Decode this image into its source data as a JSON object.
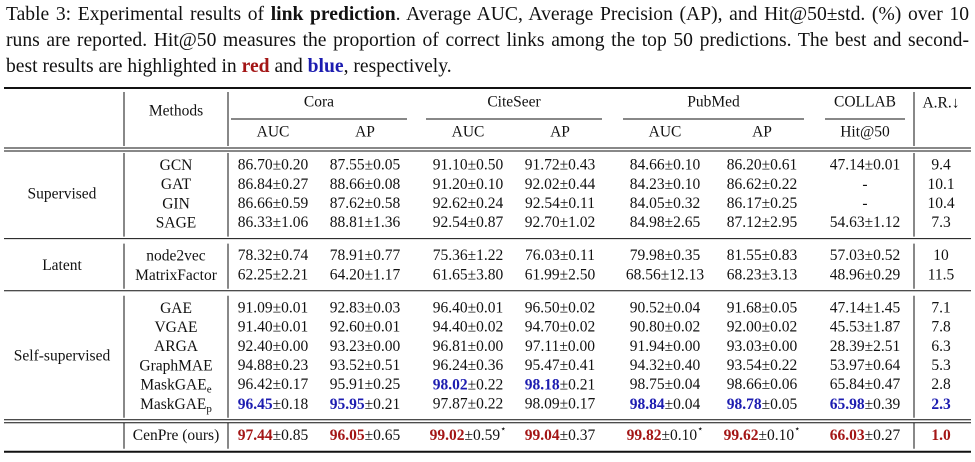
{
  "caption": [
    {
      "text": "Table 3:  Experimental results of "
    },
    {
      "text": "link prediction",
      "bold": true
    },
    {
      "text": ".  Average AUC, Average Precision (AP), and Hit@50±std. (%) over 10 runs are reported. Hit@50 measures the proportion of correct links among the top 50 predictions. The best and second-best results are highlighted in "
    },
    {
      "text": "red",
      "bold": true,
      "color": "#a31515"
    },
    {
      "text": " and "
    },
    {
      "text": "blue",
      "bold": true,
      "color": "#1c1cb0"
    },
    {
      "text": ", respectively."
    }
  ],
  "table": {
    "highlight_colors": {
      "best": "#a31515",
      "second": "#1c1cb0"
    },
    "methods_header": "Methods",
    "rank_header": "A.R.↓",
    "datasets": [
      {
        "name": "Cora",
        "metrics": [
          "AUC",
          "AP"
        ]
      },
      {
        "name": "CiteSeer",
        "metrics": [
          "AUC",
          "AP"
        ]
      },
      {
        "name": "PubMed",
        "metrics": [
          "AUC",
          "AP"
        ]
      },
      {
        "name": "COLLAB",
        "metrics": [
          "Hit@50"
        ]
      }
    ],
    "groups": [
      {
        "name": "Supervised",
        "rows": [
          {
            "method": {
              "text": "GCN"
            },
            "cells": [
              "86.70±0.20",
              "87.55±0.05",
              "91.10±0.50",
              "91.72±0.43",
              "84.66±0.10",
              "86.20±0.61",
              "47.14±0.01"
            ],
            "rank": "9.4"
          },
          {
            "method": {
              "text": "GAT"
            },
            "cells": [
              "86.84±0.27",
              "88.66±0.08",
              "91.20±0.10",
              "92.02±0.44",
              "84.23±0.10",
              "86.62±0.22",
              "-"
            ],
            "rank": "10.1"
          },
          {
            "method": {
              "text": "GIN"
            },
            "cells": [
              "86.66±0.59",
              "87.62±0.58",
              "92.62±0.24",
              "92.54±0.11",
              "84.05±0.32",
              "86.17±0.25",
              "-"
            ],
            "rank": "10.4"
          },
          {
            "method": {
              "text": "SAGE"
            },
            "cells": [
              "86.33±1.06",
              "88.81±1.36",
              "92.54±0.87",
              "92.70±1.02",
              "84.98±2.65",
              "87.12±2.95",
              "54.63±1.12"
            ],
            "rank": "7.3"
          }
        ]
      },
      {
        "name": "Latent",
        "rows": [
          {
            "method": {
              "text": "node2vec"
            },
            "cells": [
              "78.32±0.74",
              "78.91±0.77",
              "75.36±1.22",
              "76.03±0.11",
              "79.98±0.35",
              "81.55±0.83",
              "57.03±0.52"
            ],
            "rank": "10"
          },
          {
            "method": {
              "text": "MatrixFactor"
            },
            "cells": [
              "62.25±2.21",
              "64.20±1.17",
              "61.65±3.80",
              "61.99±2.50",
              "68.56±12.13",
              "68.23±3.13",
              "48.96±0.29"
            ],
            "rank": "11.5"
          }
        ]
      },
      {
        "name": "Self-supervised",
        "rows": [
          {
            "method": {
              "text": "GAE"
            },
            "cells": [
              "91.09±0.01",
              "92.83±0.03",
              "96.40±0.01",
              "96.50±0.02",
              "90.52±0.04",
              "91.68±0.05",
              "47.14±1.45"
            ],
            "rank": "7.1"
          },
          {
            "method": {
              "text": "VGAE"
            },
            "cells": [
              "91.40±0.01",
              "92.60±0.01",
              "94.40±0.02",
              "94.70±0.02",
              "90.80±0.02",
              "92.00±0.02",
              "45.53±1.87"
            ],
            "rank": "7.8"
          },
          {
            "method": {
              "text": "ARGA"
            },
            "cells": [
              "92.40±0.00",
              "93.23±0.00",
              "96.81±0.00",
              "97.11±0.00",
              "91.94±0.00",
              "93.03±0.00",
              "28.39±2.51"
            ],
            "rank": "6.3"
          },
          {
            "method": {
              "text": "GraphMAE"
            },
            "cells": [
              "94.88±0.23",
              "93.52±0.51",
              "96.24±0.36",
              "95.47±0.41",
              "94.32±0.40",
              "93.54±0.22",
              "53.97±0.64"
            ],
            "rank": "5.3"
          },
          {
            "method": {
              "text": "MaskGAE",
              "sub": "e"
            },
            "cells": [
              "96.42±0.17",
              "95.91±0.25",
              {
                "text": "98.02",
                "rest": "±0.22",
                "highlight": "second"
              },
              {
                "text": "98.18",
                "rest": "±0.21",
                "highlight": "second"
              },
              "98.75±0.04",
              "98.66±0.06",
              "65.84±0.47"
            ],
            "rank": "2.8"
          },
          {
            "method": {
              "text": "MaskGAE",
              "sub": "p"
            },
            "cells": [
              {
                "text": "96.45",
                "rest": "±0.18",
                "highlight": "second"
              },
              {
                "text": "95.95",
                "rest": "±0.21",
                "highlight": "second"
              },
              "97.87±0.22",
              "98.09±0.17",
              {
                "text": "98.84",
                "rest": "±0.04",
                "highlight": "second"
              },
              {
                "text": "98.78",
                "rest": "±0.05",
                "highlight": "second"
              },
              {
                "text": "65.98",
                "rest": "±0.39",
                "highlight": "second"
              }
            ],
            "rank": {
              "text": "2.3",
              "highlight": "second"
            }
          }
        ]
      },
      {
        "rows": [
          {
            "method": {
              "text": "CenPre (ours)"
            },
            "cells": [
              {
                "text": "97.44",
                "rest": "±0.85",
                "highlight": "best"
              },
              {
                "text": "96.05",
                "rest": "±0.65",
                "highlight": "best"
              },
              {
                "text": "99.02",
                "rest": "±0.59",
                "sup": "⋆",
                "highlight": "best"
              },
              {
                "text": "99.04",
                "rest": "±0.37",
                "highlight": "best"
              },
              {
                "text": "99.82",
                "rest": "±0.10",
                "sup": "⋆",
                "highlight": "best"
              },
              {
                "text": "99.62",
                "rest": "±0.10",
                "sup": "⋆",
                "highlight": "best"
              },
              {
                "text": "66.03",
                "rest": "±0.27",
                "highlight": "best"
              }
            ],
            "rank": {
              "text": "1.0",
              "highlight": "best"
            }
          }
        ]
      }
    ]
  }
}
